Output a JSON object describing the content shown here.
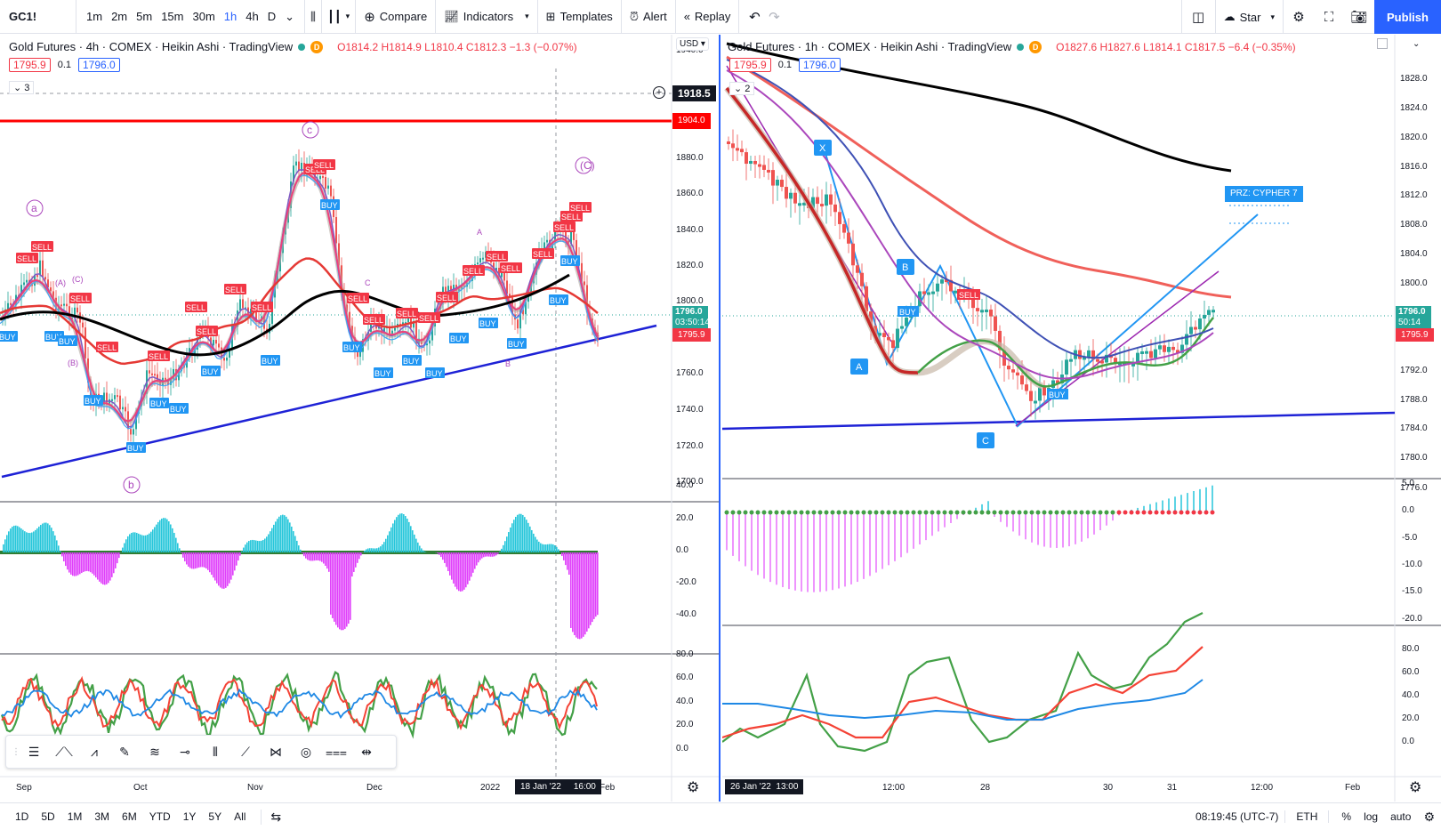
{
  "toolbar": {
    "symbol": "GC1!",
    "intervals": [
      "1m",
      "2m",
      "5m",
      "15m",
      "30m",
      "1h",
      "4h",
      "D"
    ],
    "active_interval": "1h",
    "compare_label": "Compare",
    "indicators_label": "Indicators",
    "templates_label": "Templates",
    "alert_label": "Alert",
    "replay_label": "Replay",
    "layout_name": "Star",
    "publish_label": "Publish"
  },
  "left_chart": {
    "title": "Gold Futures · 4h · COMEX · Heikin Ashi · TradingView",
    "ohlc": "O1814.2 H1814.9 L1810.4 C1812.3 −1.3 (−0.07%)",
    "bid": "1795.9",
    "spread": "0.1",
    "ask": "1796.0",
    "collapse_count": "3",
    "currency": "USD",
    "price_axis": [
      "1940.0",
      "1900.0",
      "1880.0",
      "1860.0",
      "1840.0",
      "1820.0",
      "1800.0",
      "1780.0",
      "1760.0",
      "1740.0",
      "1720.0",
      "1700.0"
    ],
    "price_box_crosshair": "1918.5",
    "price_box_red_line": "1904.0",
    "price_box_last": "1796.0",
    "price_box_countdown": "03:50:14",
    "price_box_bid": "1795.9",
    "macd_axis": [
      "40.0",
      "20.0",
      "0.0",
      "-20.0",
      "-40.0"
    ],
    "rsi_axis": [
      "80.0",
      "60.0",
      "40.0",
      "20.0",
      "0.0"
    ],
    "time_axis": [
      "Sep",
      "Oct",
      "Nov",
      "Dec",
      "2022",
      "Feb"
    ],
    "time_cursor_date": "18 Jan '22",
    "time_cursor_time": "16:00",
    "wave_labels": [
      "a",
      "b",
      "c",
      "(A)",
      "(B)",
      "(C)",
      "(C)",
      "A",
      "B",
      "C"
    ],
    "signal_buy": "BUY",
    "signal_sell": "SELL"
  },
  "right_chart": {
    "title": "Gold Futures · 1h · COMEX · Heikin Ashi · TradingView",
    "ohlc": "O1827.6 H1827.6 L1814.1 C1817.5 −6.4 (−0.35%)",
    "bid": "1795.9",
    "spread": "0.1",
    "ask": "1796.0",
    "collapse_count": "2",
    "price_axis": [
      "1828.0",
      "1824.0",
      "1820.0",
      "1816.0",
      "1812.0",
      "1808.0",
      "1804.0",
      "1800.0",
      "1792.0",
      "1788.0",
      "1784.0",
      "1780.0",
      "1776.0"
    ],
    "price_box_last": "1796.0",
    "price_box_countdown": "50:14",
    "price_box_bid": "1795.9",
    "macd_axis": [
      "5.0",
      "0.0",
      "-5.0",
      "-10.0",
      "-15.0",
      "-20.0"
    ],
    "rsi_axis": [
      "80.0",
      "60.0",
      "40.0",
      "20.0",
      "0.0"
    ],
    "time_axis": [
      "12:00",
      "28",
      "30",
      "31",
      "12:00",
      "Feb"
    ],
    "time_cursor": "26 Jan '22  13:00",
    "pattern_points": [
      "X",
      "A",
      "B",
      "C"
    ],
    "prz_label": "PRZ: CYPHER 7",
    "signal_buy": "BUY",
    "signal_sell": "SELL"
  },
  "bottombar": {
    "ranges": [
      "1D",
      "5D",
      "1M",
      "3M",
      "6M",
      "YTD",
      "1Y",
      "5Y",
      "All"
    ],
    "clock": "08:19:45 (UTC-7)",
    "session": "ETH",
    "percent": "%",
    "log": "log",
    "auto": "auto"
  }
}
